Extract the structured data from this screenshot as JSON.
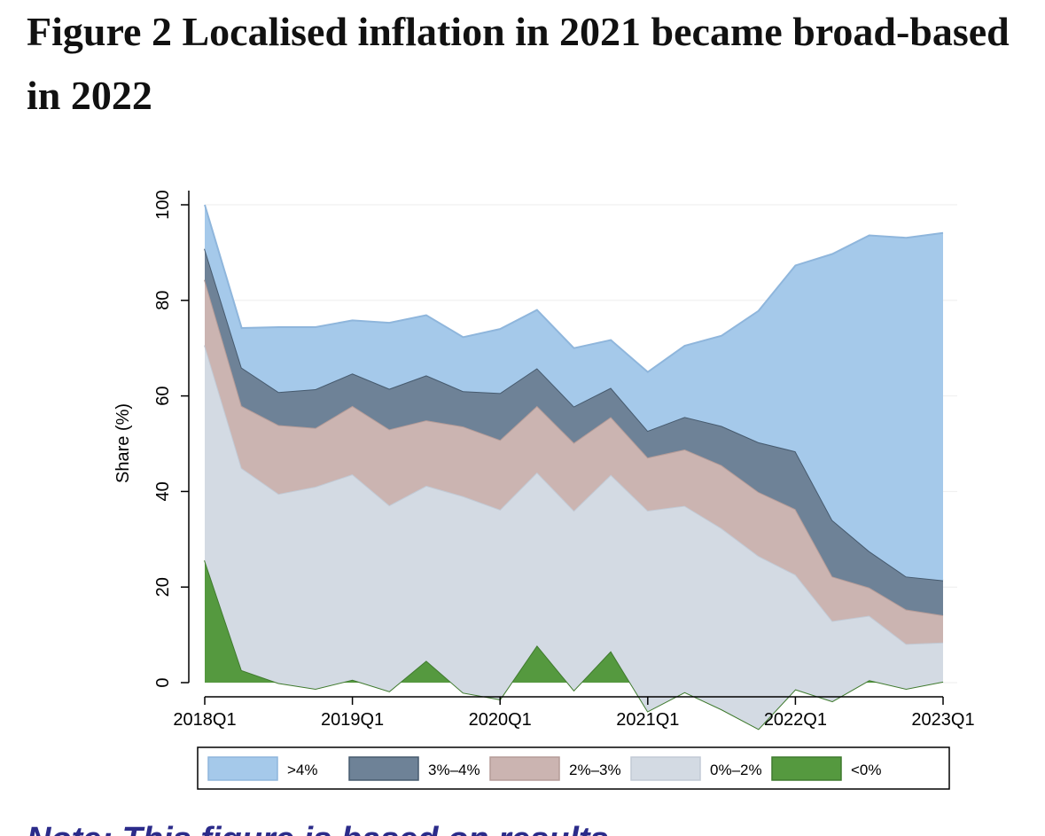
{
  "figure": {
    "label": "Figure 2",
    "title": "Localised inflation in 2021 became broad-based in 2022",
    "note_fragment": "Note: This figure is based on results..."
  },
  "chart_data": {
    "type": "area",
    "stacked": true,
    "title": "Localised inflation in 2021 became broad-based in 2022",
    "xlabel": "",
    "ylabel": "Share (%)",
    "ylim": [
      0,
      100
    ],
    "yticks": [
      0,
      20,
      40,
      60,
      80,
      100
    ],
    "xticks": [
      "2018Q1",
      "2019Q1",
      "2020Q1",
      "2021Q1",
      "2022Q1",
      "2023Q1"
    ],
    "x": [
      "2018Q1",
      "2018Q2",
      "2018Q3",
      "2018Q4",
      "2019Q1",
      "2019Q2",
      "2019Q3",
      "2019Q4",
      "2020Q1",
      "2020Q2",
      "2020Q3",
      "2020Q4",
      "2021Q1",
      "2021Q2",
      "2021Q3",
      "2021Q4",
      "2022Q1",
      "2022Q2",
      "2022Q3",
      "2022Q4",
      "2023Q1"
    ],
    "grid": true,
    "legend_position": "bottom",
    "series": [
      {
        "name": "<0%",
        "color": "#55993f",
        "edge": "#3f7a2e",
        "values": [
          25.6,
          2.6,
          -0.1,
          -1.3,
          0.6,
          -1.8,
          4.6,
          -2.1,
          -3.5,
          7.8,
          -1.6,
          6.6,
          -6.0,
          -2.0,
          -5.6,
          -9.7,
          -1.4,
          -3.9,
          0.5,
          -1.3,
          0.2
        ]
      },
      {
        "name": "0%–2%",
        "color": "#d3dae3",
        "edge": "#c2cad5",
        "values": [
          45.0,
          42.3,
          39.6,
          42.3,
          43.0,
          38.9,
          36.6,
          41.1,
          39.7,
          36.2,
          37.6,
          36.9,
          42.0,
          39.0,
          37.9,
          36.2,
          24.0,
          16.8,
          13.5,
          9.4,
          8.2
        ]
      },
      {
        "name": "2%–3%",
        "color": "#cbb4b1",
        "edge": "#b59c98",
        "values": [
          13.7,
          13.0,
          14.4,
          12.3,
          14.3,
          15.9,
          13.7,
          14.6,
          14.6,
          13.9,
          14.2,
          12.1,
          11.1,
          11.8,
          13.2,
          13.4,
          13.7,
          9.3,
          5.9,
          7.2,
          5.7
        ]
      },
      {
        "name": "3%–4%",
        "color": "#6e8297",
        "edge": "#465a6e",
        "values": [
          6.5,
          8.0,
          6.9,
          8.1,
          6.8,
          8.5,
          9.4,
          7.4,
          9.8,
          7.9,
          7.6,
          6.1,
          5.6,
          6.8,
          8.2,
          10.4,
          12.1,
          11.8,
          7.6,
          6.9,
          7.3
        ]
      },
      {
        "name": ">4%",
        "color": "#a5c9ea",
        "edge": "#8fb6dc",
        "values": [
          9.2,
          8.3,
          13.6,
          13.0,
          11.1,
          13.8,
          12.6,
          11.3,
          13.4,
          12.2,
          12.2,
          10.0,
          12.3,
          14.9,
          18.9,
          27.5,
          38.9,
          55.7,
          66.1,
          70.9,
          72.7
        ]
      }
    ],
    "legend_order": [
      ">4%",
      "3%–4%",
      "2%–3%",
      "0%–2%",
      "<0%"
    ]
  }
}
